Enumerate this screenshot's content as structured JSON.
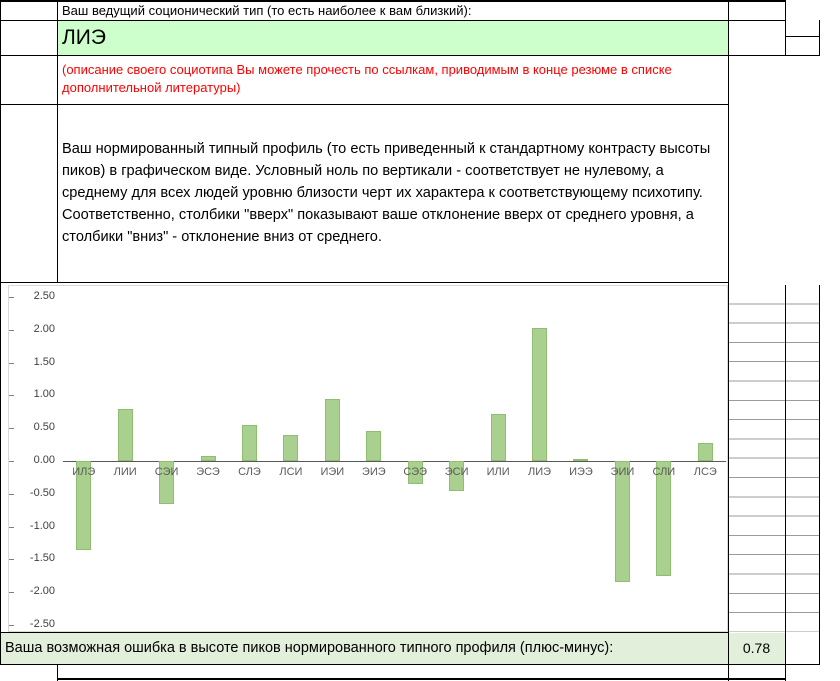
{
  "page": {
    "row1_label": "Ваш ведущий соционический тип (то есть наиболее к вам близкий):",
    "leading_type": "ЛИЭ",
    "note_red": "(описание своего социотипа Вы можете прочесть по ссылкам, приводимым в конце резюме в списке дополнительной литературы)",
    "profile_description": "Ваш нормированный типный профиль (то есть приведенный к стандартному контрасту высоты пиков) в графическом виде. Условный ноль по вертикали - соответствует не нулевому, а среднему для всех людей уровню близости черт их характера к соответствующему психотипу. Соответственно, столбики \"вверх\" показывают ваше отклонение вверх от среднего уровня, а столбики \"вниз\" - отклонение вниз от среднего.",
    "error_label": "Ваша возможная ошибка в высоте пиков нормированного типного профиля (плюс-минус):",
    "error_value": "0.78"
  },
  "colors": {
    "type_cell_bg": "#CCFFCC",
    "error_row_bg": "#E2EFDA",
    "bar_fill": "#A9D08E",
    "bar_edge": "#8FBE71",
    "note_red": "#FF0000",
    "axis_text": "#595959"
  },
  "chart_data": {
    "type": "bar",
    "title": "",
    "xlabel": "",
    "ylabel": "",
    "categories": [
      "ИЛЭ",
      "ЛИИ",
      "СЭИ",
      "ЭСЭ",
      "СЛЭ",
      "ЛСИ",
      "ИЭИ",
      "ЭИЭ",
      "СЭЭ",
      "ЭСИ",
      "ИЛИ",
      "ЛИЭ",
      "ИЭЭ",
      "ЭИИ",
      "СЛИ",
      "ЛСЭ"
    ],
    "values": [
      -1.35,
      0.8,
      -0.65,
      0.07,
      0.55,
      0.4,
      0.95,
      0.46,
      -0.35,
      -0.45,
      0.72,
      2.03,
      0.03,
      -1.85,
      -1.75,
      0.27
    ],
    "ylim": [
      -2.5,
      2.5
    ],
    "ytick_step": 0.5,
    "yticks": [
      "2.50",
      "2.00",
      "1.50",
      "1.00",
      "0.50",
      "0.00",
      "-0.50",
      "-1.00",
      "-1.50",
      "-2.00",
      "-2.50"
    ],
    "grid": false,
    "legend": "none"
  }
}
